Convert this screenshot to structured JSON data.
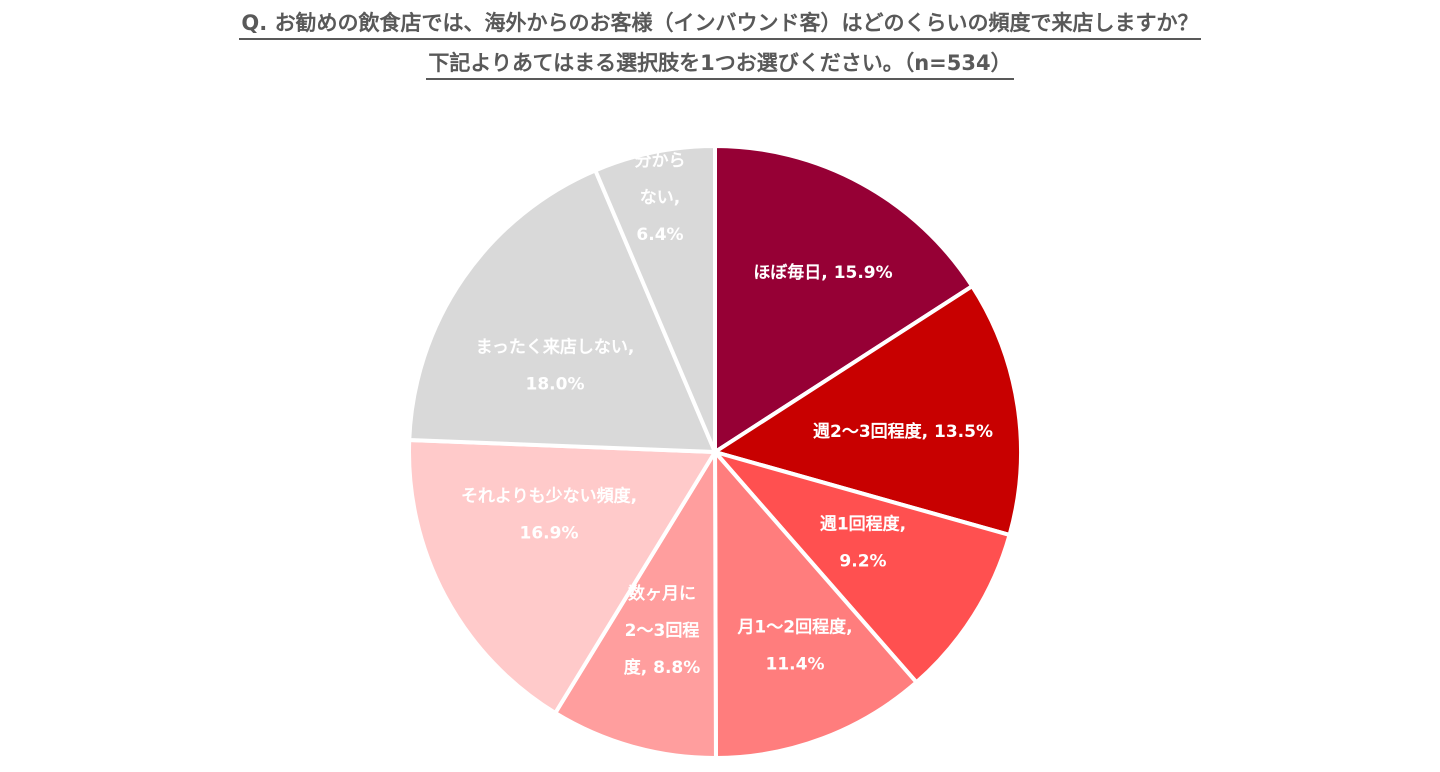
{
  "chart_data": {
    "type": "pie",
    "title": "Q. お勧めの飲食店では、海外からのお客様（インバウンド客）はどのくらいの頻度で来店しますか？",
    "subtitle": "下記よりあてはまる選択肢を1つお選びください。（n=534）",
    "slices": [
      {
        "label": "ほぼ毎日",
        "value": 15.9,
        "value_label": "15.9%",
        "color": "#960035",
        "label_lines": [
          "ほぼ毎日, 15.9%"
        ]
      },
      {
        "label": "週2〜3回程度",
        "value": 13.5,
        "value_label": "13.5%",
        "color": "#C80000",
        "label_lines": [
          "週2〜3回程度, 13.5%"
        ]
      },
      {
        "label": "週1回程度",
        "value": 9.2,
        "value_label": "9.2%",
        "color": "#FF5050",
        "label_lines": [
          "週1回程度,",
          "9.2%"
        ]
      },
      {
        "label": "月1〜2回程度",
        "value": 11.4,
        "value_label": "11.4%",
        "color": "#FF7D7D",
        "label_lines": [
          "月1〜2回程度,",
          "11.4%"
        ]
      },
      {
        "label": "数ヶ月に2〜3回程度",
        "value": 8.8,
        "value_label": "8.8%",
        "color": "#FF9E9E",
        "label_lines": [
          "数ヶ月に",
          "2〜3回程",
          "度, 8.8%"
        ]
      },
      {
        "label": "それよりも少ない頻度",
        "value": 16.9,
        "value_label": "16.9%",
        "color": "#FFCACA",
        "label_lines": [
          "それよりも少ない頻度,",
          "16.9%"
        ]
      },
      {
        "label": "まったく来店しない",
        "value": 18.0,
        "value_label": "18.0%",
        "color": "#D9D9D9",
        "label_lines": [
          "まったく来店しない,",
          "18.0%"
        ]
      },
      {
        "label": "分からない",
        "value": 6.4,
        "value_label": "6.4%",
        "color": "#D9D9D9",
        "label_lines": [
          "分から",
          "ない,",
          "6.4%"
        ]
      }
    ],
    "start": "12 o'clock",
    "direction": "clockwise",
    "legend": "none"
  }
}
